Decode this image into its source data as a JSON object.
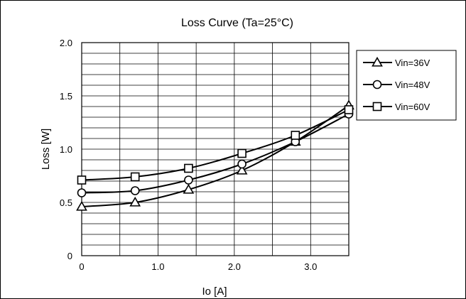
{
  "chart_data": {
    "type": "line",
    "title": "Loss Curve (Ta=25°C)",
    "xlabel": "Io [A]",
    "ylabel": "Loss [W]",
    "xlim": [
      0,
      3.5
    ],
    "ylim": [
      0,
      2.0
    ],
    "x_ticks": [
      {
        "value": 0,
        "label": "0"
      },
      {
        "value": 1.0,
        "label": "1.0"
      },
      {
        "value": 2.0,
        "label": "2.0"
      },
      {
        "value": 3.0,
        "label": "3.0"
      }
    ],
    "y_ticks": [
      {
        "value": 0,
        "label": "0"
      },
      {
        "value": 0.5,
        "label": "0.5"
      },
      {
        "value": 1.0,
        "label": "1.0"
      },
      {
        "value": 1.5,
        "label": "1.5"
      },
      {
        "value": 2.0,
        "label": "2.0"
      }
    ],
    "grid": true,
    "x_grid_step": 0.5,
    "y_grid_step": 0.1,
    "legend_position": "right",
    "series": [
      {
        "name": "Vin=36V",
        "marker": "triangle",
        "x": [
          0,
          0.7,
          1.4,
          2.1,
          2.8,
          3.5
        ],
        "y": [
          0.46,
          0.5,
          0.62,
          0.8,
          1.07,
          1.41
        ]
      },
      {
        "name": "Vin=48V",
        "marker": "circle",
        "x": [
          0,
          0.7,
          1.4,
          2.1,
          2.8,
          3.5
        ],
        "y": [
          0.59,
          0.61,
          0.71,
          0.86,
          1.07,
          1.33
        ]
      },
      {
        "name": "Vin=60V",
        "marker": "square",
        "x": [
          0,
          0.7,
          1.4,
          2.1,
          2.8,
          3.5
        ],
        "y": [
          0.71,
          0.74,
          0.82,
          0.96,
          1.13,
          1.37
        ]
      }
    ]
  }
}
